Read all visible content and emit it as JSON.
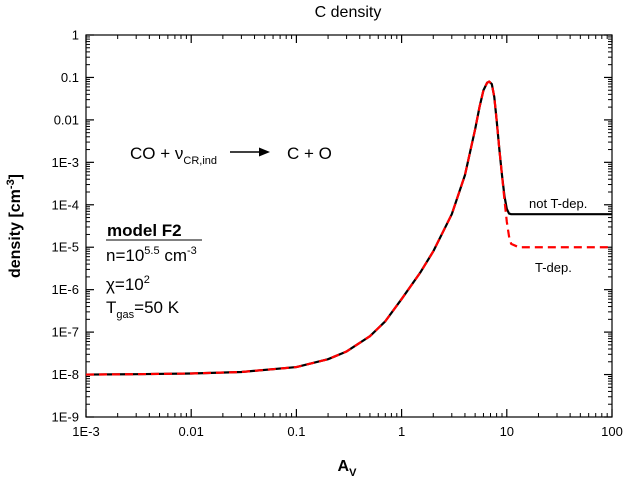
{
  "chart_data": {
    "type": "line",
    "title": "C density",
    "xlabel": "A",
    "xlabel_sub": "V",
    "ylabel": "density [cm",
    "ylabel_sup": "-3",
    "ylabel_end": "]",
    "x_scale": "log",
    "y_scale": "log",
    "xlim": [
      0.001,
      100
    ],
    "ylim": [
      1e-09,
      1
    ],
    "x_ticks": [
      {
        "value": 0.001,
        "label": "1E-3"
      },
      {
        "value": 0.01,
        "label": "0.01"
      },
      {
        "value": 0.1,
        "label": "0.1"
      },
      {
        "value": 1,
        "label": "1"
      },
      {
        "value": 10,
        "label": "10"
      },
      {
        "value": 100,
        "label": "100"
      }
    ],
    "y_ticks": [
      {
        "value": 1e-09,
        "label": "1E-9"
      },
      {
        "value": 1e-08,
        "label": "1E-8"
      },
      {
        "value": 1e-07,
        "label": "1E-7"
      },
      {
        "value": 1e-06,
        "label": "1E-6"
      },
      {
        "value": 1e-05,
        "label": "1E-5"
      },
      {
        "value": 0.0001,
        "label": "1E-4"
      },
      {
        "value": 0.001,
        "label": "1E-3"
      },
      {
        "value": 0.01,
        "label": "0.01"
      },
      {
        "value": 0.1,
        "label": "0.1"
      },
      {
        "value": 1,
        "label": "1"
      }
    ],
    "grid": false,
    "series": [
      {
        "name": "not T-dep.",
        "color": "#000000",
        "dash": "solid",
        "points": [
          [
            0.001,
            1e-08
          ],
          [
            0.003,
            1.02e-08
          ],
          [
            0.01,
            1.06e-08
          ],
          [
            0.03,
            1.15e-08
          ],
          [
            0.1,
            1.5e-08
          ],
          [
            0.2,
            2.3e-08
          ],
          [
            0.3,
            3.5e-08
          ],
          [
            0.5,
            8e-08
          ],
          [
            0.7,
            1.8e-07
          ],
          [
            1.0,
            6e-07
          ],
          [
            1.5,
            2.5e-06
          ],
          [
            2.0,
            8e-06
          ],
          [
            3.0,
            6e-05
          ],
          [
            4.0,
            0.0005
          ],
          [
            5.0,
            0.006
          ],
          [
            5.5,
            0.02
          ],
          [
            6.0,
            0.05
          ],
          [
            6.5,
            0.075
          ],
          [
            6.8,
            0.08
          ],
          [
            7.2,
            0.07
          ],
          [
            7.6,
            0.035
          ],
          [
            8.0,
            0.01
          ],
          [
            8.5,
            0.002
          ],
          [
            9.0,
            0.0005
          ],
          [
            9.5,
            0.00016
          ],
          [
            10.0,
            8e-05
          ],
          [
            10.5,
            6.2e-05
          ],
          [
            11.0,
            6e-05
          ],
          [
            15,
            6e-05
          ],
          [
            30,
            6e-05
          ],
          [
            100,
            6e-05
          ]
        ]
      },
      {
        "name": "T-dep.",
        "color": "#ff0000",
        "dash": "dashed",
        "points": [
          [
            0.001,
            1e-08
          ],
          [
            0.003,
            1.02e-08
          ],
          [
            0.01,
            1.06e-08
          ],
          [
            0.03,
            1.15e-08
          ],
          [
            0.1,
            1.5e-08
          ],
          [
            0.2,
            2.3e-08
          ],
          [
            0.3,
            3.5e-08
          ],
          [
            0.5,
            8e-08
          ],
          [
            0.7,
            1.8e-07
          ],
          [
            1.0,
            6e-07
          ],
          [
            1.5,
            2.5e-06
          ],
          [
            2.0,
            8e-06
          ],
          [
            3.0,
            6e-05
          ],
          [
            4.0,
            0.0005
          ],
          [
            5.0,
            0.006
          ],
          [
            5.5,
            0.02
          ],
          [
            6.0,
            0.05
          ],
          [
            6.5,
            0.075
          ],
          [
            6.8,
            0.08
          ],
          [
            7.2,
            0.07
          ],
          [
            7.6,
            0.035
          ],
          [
            8.0,
            0.01
          ],
          [
            8.5,
            0.002
          ],
          [
            9.0,
            0.0005
          ],
          [
            9.5,
            0.00013
          ],
          [
            10.0,
            4e-05
          ],
          [
            10.5,
            1.8e-05
          ],
          [
            11.0,
            1.2e-05
          ],
          [
            13,
            1e-05
          ],
          [
            20,
            1e-05
          ],
          [
            50,
            1e-05
          ],
          [
            100,
            1e-05
          ]
        ]
      }
    ],
    "annotations": {
      "reaction": {
        "left": "CO + ν",
        "sub": "CR,ind",
        "right": "C + O"
      },
      "model": "model F2",
      "density": {
        "prefix": "n=10",
        "sup": "5.5",
        "suffix": " cm",
        "sup2": "-3"
      },
      "chi": {
        "prefix": "χ=10",
        "sup": "2"
      },
      "tgas": {
        "prefix": "T",
        "sub": "gas",
        "suffix": "=50 K"
      },
      "label_not_tdep": "not T-dep.",
      "label_tdep": "T-dep."
    }
  }
}
